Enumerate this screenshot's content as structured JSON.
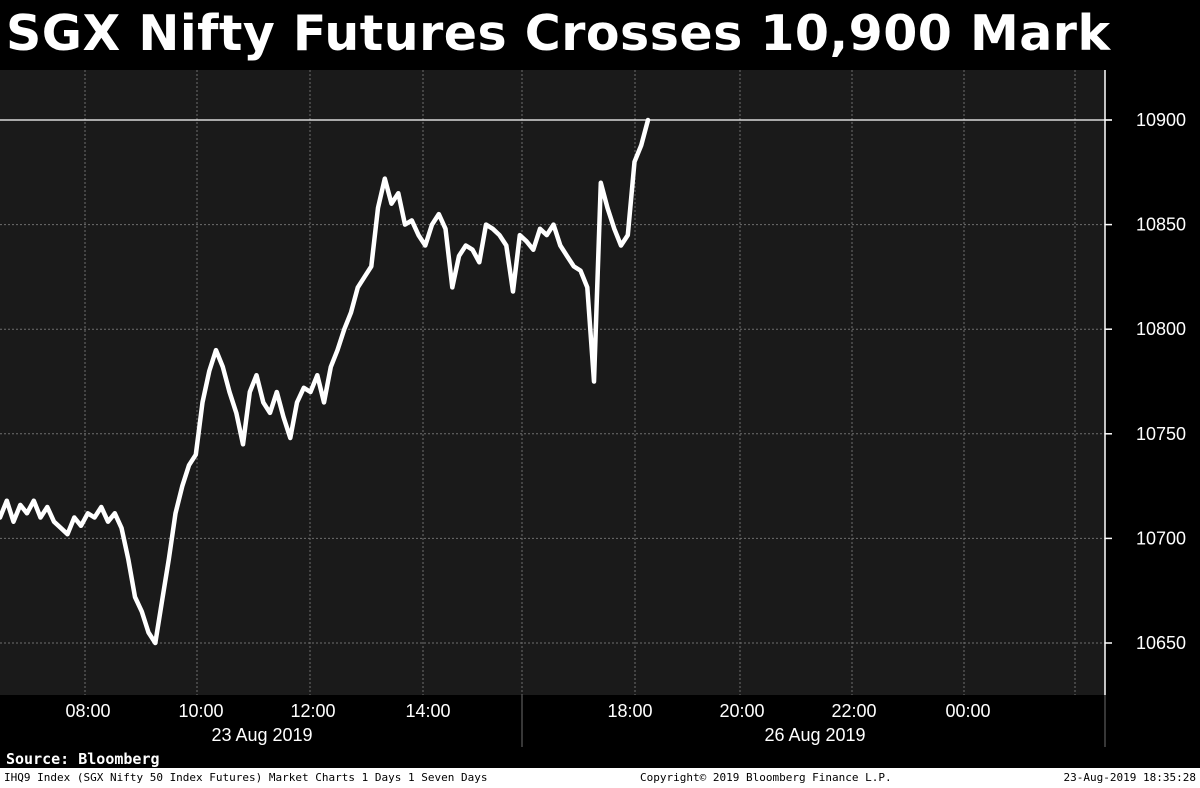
{
  "chart_data": {
    "type": "line",
    "title": "SGX Nifty Futures Crosses 10,900 Mark",
    "x_ticks": [
      "08:00",
      "10:00",
      "12:00",
      "14:00",
      "18:00",
      "20:00",
      "22:00",
      "00:00"
    ],
    "date_labels": [
      "23 Aug 2019",
      "26 Aug 2019"
    ],
    "y_ticks": [
      10650,
      10700,
      10750,
      10800,
      10850,
      10900
    ],
    "ylim": [
      10625,
      10925
    ],
    "reference_line": 10900,
    "grid": true,
    "series": [
      {
        "values": [
          10710,
          10718,
          10708,
          10716,
          10712,
          10718,
          10710,
          10715,
          10708,
          10705,
          10702,
          10710,
          10706,
          10712,
          10710,
          10715,
          10708,
          10712,
          10705,
          10690,
          10672,
          10665,
          10655,
          10650,
          10670,
          10690,
          10712,
          10725,
          10735,
          10740,
          10765,
          10780,
          10790,
          10782,
          10770,
          10760,
          10745,
          10770,
          10778,
          10765,
          10760,
          10770,
          10758,
          10748,
          10765,
          10772,
          10770,
          10778,
          10765,
          10782,
          10790,
          10800,
          10808,
          10820,
          10825,
          10830,
          10858,
          10872,
          10860,
          10865,
          10850,
          10852,
          10845,
          10840,
          10850,
          10855,
          10848,
          10820,
          10835,
          10840,
          10838,
          10832,
          10850,
          10848,
          10845,
          10840,
          10818,
          10845,
          10842,
          10838,
          10848,
          10845,
          10850,
          10840,
          10835,
          10830,
          10828,
          10820,
          10775,
          10870,
          10858,
          10848,
          10840,
          10845,
          10880,
          10888,
          10900
        ]
      }
    ]
  },
  "source": "Source: Bloomberg",
  "footer": {
    "left": "IHQ9 Index (SGX Nifty 50 Index Futures) Market Charts 1 Days 1 Seven Days",
    "middle": "Copyright© 2019 Bloomberg Finance L.P.",
    "right": "23-Aug-2019 18:35:28"
  },
  "colors": {
    "background": "#000000",
    "plot": "#1a1a1a",
    "grid": "#6e6e6e",
    "line": "#ffffff"
  }
}
